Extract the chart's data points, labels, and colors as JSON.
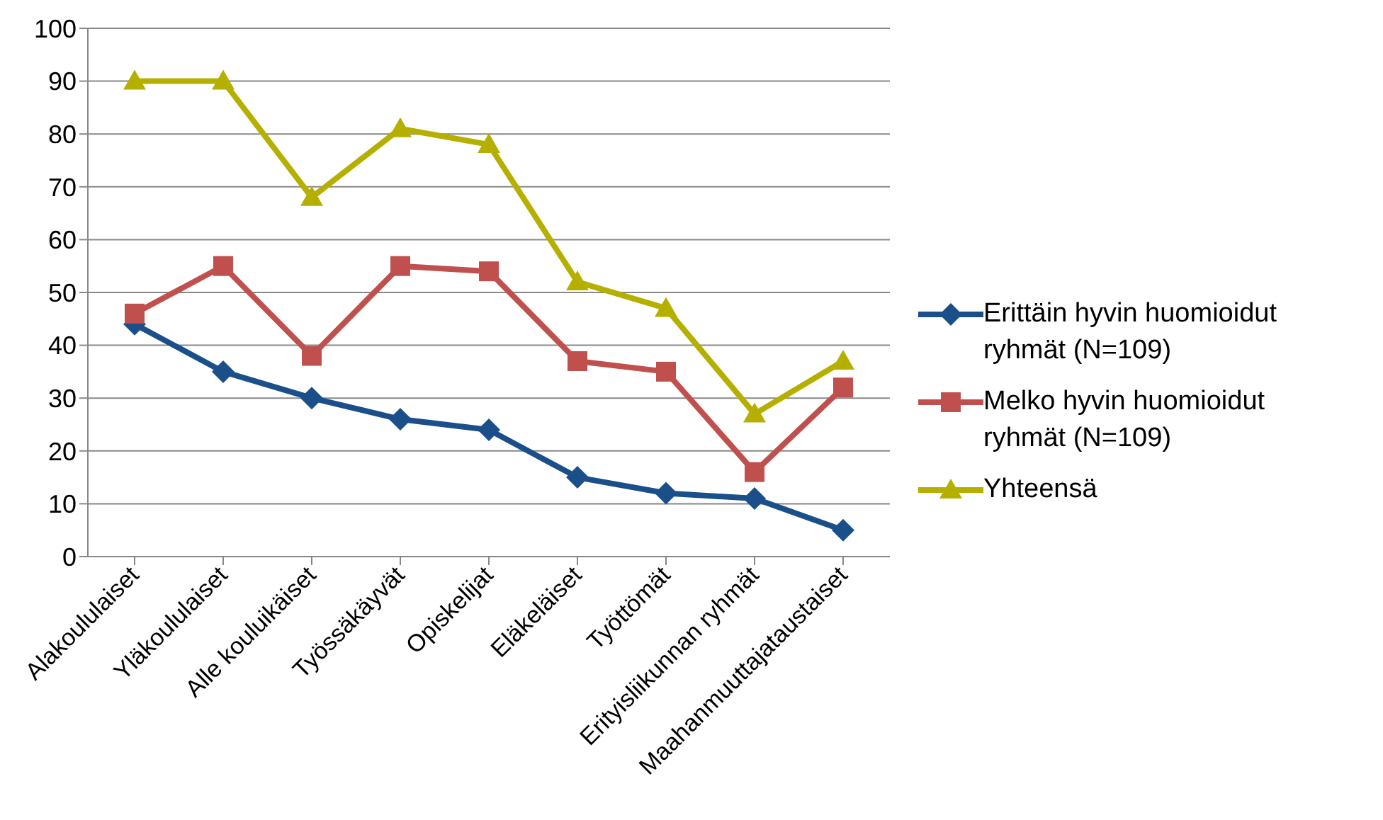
{
  "chart_data": {
    "type": "line",
    "categories": [
      "Alakoululaiset",
      "Yläkoululaiset",
      "Alle kouluikäiset",
      "Työssäkäyvät",
      "Opiskelijat",
      "Eläkeläiset",
      "Työttömät",
      "Erityisliikunnan ryhmät",
      "Maahanmuuttajataustaiset"
    ],
    "series": [
      {
        "name": "Erittäin hyvin huomioidut ryhmät (N=109)",
        "color": "#1a4f8a",
        "marker": "diamond",
        "values": [
          44,
          35,
          30,
          26,
          24,
          15,
          12,
          11,
          5
        ]
      },
      {
        "name": "Melko hyvin huomioidut ryhmät (N=109)",
        "color": "#c0504d",
        "marker": "square",
        "values": [
          46,
          55,
          38,
          55,
          54,
          37,
          35,
          16,
          32
        ]
      },
      {
        "name": "Yhteensä",
        "color": "#b5b000",
        "marker": "triangle",
        "values": [
          90,
          90,
          68,
          81,
          78,
          52,
          47,
          27,
          37
        ]
      }
    ],
    "ylim": [
      0,
      100
    ],
    "yticks": [
      0,
      10,
      20,
      30,
      40,
      50,
      60,
      70,
      80,
      90,
      100
    ],
    "grid": "y",
    "legend": "right",
    "line_style": "solid"
  }
}
